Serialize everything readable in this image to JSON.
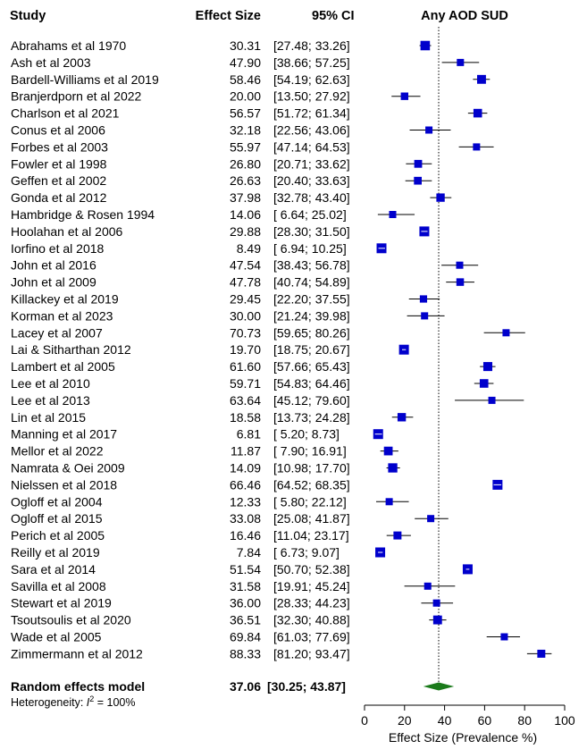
{
  "headers": {
    "study": "Study",
    "effect": "Effect Size",
    "ci": "95% CI",
    "plot": "Any AOD SUD"
  },
  "chart_data": {
    "type": "forest",
    "title": "Any AOD SUD",
    "xlabel": "Effect Size (Prevalence %)",
    "xlim": [
      0,
      100
    ],
    "xticks": [
      0,
      20,
      40,
      60,
      80,
      100
    ],
    "reference_line": 37.06,
    "colors": {
      "marker": "#0000cc",
      "diamond": "#1a7a1a",
      "line": "#000000"
    },
    "studies": [
      {
        "name": "Abrahams et al 1970",
        "es": 30.31,
        "lo": 27.48,
        "hi": 33.26,
        "es_text": "30.31",
        "ci_text": "[27.48; 33.26]"
      },
      {
        "name": "Ash et al 2003",
        "es": 47.9,
        "lo": 38.66,
        "hi": 57.25,
        "es_text": "47.90",
        "ci_text": "[38.66; 57.25]"
      },
      {
        "name": "Bardell-Williams et al 2019",
        "es": 58.46,
        "lo": 54.19,
        "hi": 62.63,
        "es_text": "58.46",
        "ci_text": "[54.19; 62.63]"
      },
      {
        "name": "Branjerdporn et al 2022",
        "es": 20.0,
        "lo": 13.5,
        "hi": 27.92,
        "es_text": "20.00",
        "ci_text": "[13.50; 27.92]"
      },
      {
        "name": "Charlson et al 2021",
        "es": 56.57,
        "lo": 51.72,
        "hi": 61.34,
        "es_text": "56.57",
        "ci_text": "[51.72; 61.34]"
      },
      {
        "name": "Conus et al 2006",
        "es": 32.18,
        "lo": 22.56,
        "hi": 43.06,
        "es_text": "32.18",
        "ci_text": "[22.56; 43.06]"
      },
      {
        "name": "Forbes et al 2003",
        "es": 55.97,
        "lo": 47.14,
        "hi": 64.53,
        "es_text": "55.97",
        "ci_text": "[47.14; 64.53]"
      },
      {
        "name": "Fowler et al 1998",
        "es": 26.8,
        "lo": 20.71,
        "hi": 33.62,
        "es_text": "26.80",
        "ci_text": "[20.71; 33.62]"
      },
      {
        "name": "Geffen et al 2002",
        "es": 26.63,
        "lo": 20.4,
        "hi": 33.63,
        "es_text": "26.63",
        "ci_text": "[20.40; 33.63]"
      },
      {
        "name": "Gonda et al 2012",
        "es": 37.98,
        "lo": 32.78,
        "hi": 43.4,
        "es_text": "37.98",
        "ci_text": "[32.78; 43.40]"
      },
      {
        "name": "Hambridge & Rosen 1994",
        "es": 14.06,
        "lo": 6.64,
        "hi": 25.02,
        "es_text": "14.06",
        "ci_text": "[ 6.64; 25.02]"
      },
      {
        "name": "Hoolahan et al 2006",
        "es": 29.88,
        "lo": 28.3,
        "hi": 31.5,
        "es_text": "29.88",
        "ci_text": "[28.30; 31.50]"
      },
      {
        "name": "Iorfino et al 2018",
        "es": 8.49,
        "lo": 6.94,
        "hi": 10.25,
        "es_text": "8.49",
        "ci_text": "[ 6.94; 10.25]"
      },
      {
        "name": "John et al 2016",
        "es": 47.54,
        "lo": 38.43,
        "hi": 56.78,
        "es_text": "47.54",
        "ci_text": "[38.43; 56.78]"
      },
      {
        "name": "John et al 2009",
        "es": 47.78,
        "lo": 40.74,
        "hi": 54.89,
        "es_text": "47.78",
        "ci_text": "[40.74; 54.89]"
      },
      {
        "name": "Killackey et al 2019",
        "es": 29.45,
        "lo": 22.2,
        "hi": 37.55,
        "es_text": "29.45",
        "ci_text": "[22.20; 37.55]"
      },
      {
        "name": "Korman et al 2023",
        "es": 30.0,
        "lo": 21.24,
        "hi": 39.98,
        "es_text": "30.00",
        "ci_text": "[21.24; 39.98]"
      },
      {
        "name": "Lacey et al 2007",
        "es": 70.73,
        "lo": 59.65,
        "hi": 80.26,
        "es_text": "70.73",
        "ci_text": "[59.65; 80.26]"
      },
      {
        "name": "Lai & Sitharthan 2012",
        "es": 19.7,
        "lo": 18.75,
        "hi": 20.67,
        "es_text": "19.70",
        "ci_text": "[18.75; 20.67]"
      },
      {
        "name": "Lambert et al 2005",
        "es": 61.6,
        "lo": 57.66,
        "hi": 65.43,
        "es_text": "61.60",
        "ci_text": "[57.66; 65.43]"
      },
      {
        "name": "Lee et al 2010",
        "es": 59.71,
        "lo": 54.83,
        "hi": 64.46,
        "es_text": "59.71",
        "ci_text": "[54.83; 64.46]"
      },
      {
        "name": "Lee et al 2013",
        "es": 63.64,
        "lo": 45.12,
        "hi": 79.6,
        "es_text": "63.64",
        "ci_text": "[45.12; 79.60]"
      },
      {
        "name": "Lin et al 2015",
        "es": 18.58,
        "lo": 13.73,
        "hi": 24.28,
        "es_text": "18.58",
        "ci_text": "[13.73; 24.28]"
      },
      {
        "name": "Manning et al 2017",
        "es": 6.81,
        "lo": 5.2,
        "hi": 8.73,
        "es_text": "6.81",
        "ci_text": "[ 5.20; 8.73]"
      },
      {
        "name": "Mellor et al 2022",
        "es": 11.87,
        "lo": 7.9,
        "hi": 16.91,
        "es_text": "11.87",
        "ci_text": "[ 7.90; 16.91]"
      },
      {
        "name": "Namrata & Oei 2009",
        "es": 14.09,
        "lo": 10.98,
        "hi": 17.7,
        "es_text": "14.09",
        "ci_text": "[10.98; 17.70]"
      },
      {
        "name": "Nielssen et al 2018",
        "es": 66.46,
        "lo": 64.52,
        "hi": 68.35,
        "es_text": "66.46",
        "ci_text": "[64.52; 68.35]"
      },
      {
        "name": "Ogloff et al 2004",
        "es": 12.33,
        "lo": 5.8,
        "hi": 22.12,
        "es_text": "12.33",
        "ci_text": "[ 5.80; 22.12]"
      },
      {
        "name": "Ogloff et al 2015",
        "es": 33.08,
        "lo": 25.08,
        "hi": 41.87,
        "es_text": "33.08",
        "ci_text": "[25.08; 41.87]"
      },
      {
        "name": "Perich et al 2005",
        "es": 16.46,
        "lo": 11.04,
        "hi": 23.17,
        "es_text": "16.46",
        "ci_text": "[11.04; 23.17]"
      },
      {
        "name": "Reilly et al 2019",
        "es": 7.84,
        "lo": 6.73,
        "hi": 9.07,
        "es_text": "7.84",
        "ci_text": "[ 6.73; 9.07]"
      },
      {
        "name": "Sara et al 2014",
        "es": 51.54,
        "lo": 50.7,
        "hi": 52.38,
        "es_text": "51.54",
        "ci_text": "[50.70; 52.38]"
      },
      {
        "name": "Savilla et al 2008",
        "es": 31.58,
        "lo": 19.91,
        "hi": 45.24,
        "es_text": "31.58",
        "ci_text": "[19.91; 45.24]"
      },
      {
        "name": "Stewart et al 2019",
        "es": 36.0,
        "lo": 28.33,
        "hi": 44.23,
        "es_text": "36.00",
        "ci_text": "[28.33; 44.23]"
      },
      {
        "name": "Tsoutsoulis et al 2020",
        "es": 36.51,
        "lo": 32.3,
        "hi": 40.88,
        "es_text": "36.51",
        "ci_text": "[32.30; 40.88]"
      },
      {
        "name": "Wade et al 2005",
        "es": 69.84,
        "lo": 61.03,
        "hi": 77.69,
        "es_text": "69.84",
        "ci_text": "[61.03; 77.69]"
      },
      {
        "name": "Zimmermann et al 2012",
        "es": 88.33,
        "lo": 81.2,
        "hi": 93.47,
        "es_text": "88.33",
        "ci_text": "[81.20; 93.47]"
      }
    ],
    "summary": {
      "name": "Random effects model",
      "es": 37.06,
      "lo": 30.25,
      "hi": 43.87,
      "es_text": "37.06",
      "ci_text": "[30.25; 43.87]"
    },
    "heterogeneity": {
      "label": "Heterogeneity: ",
      "stat": "I",
      "superscript": "2",
      "value": " = 100%"
    }
  }
}
